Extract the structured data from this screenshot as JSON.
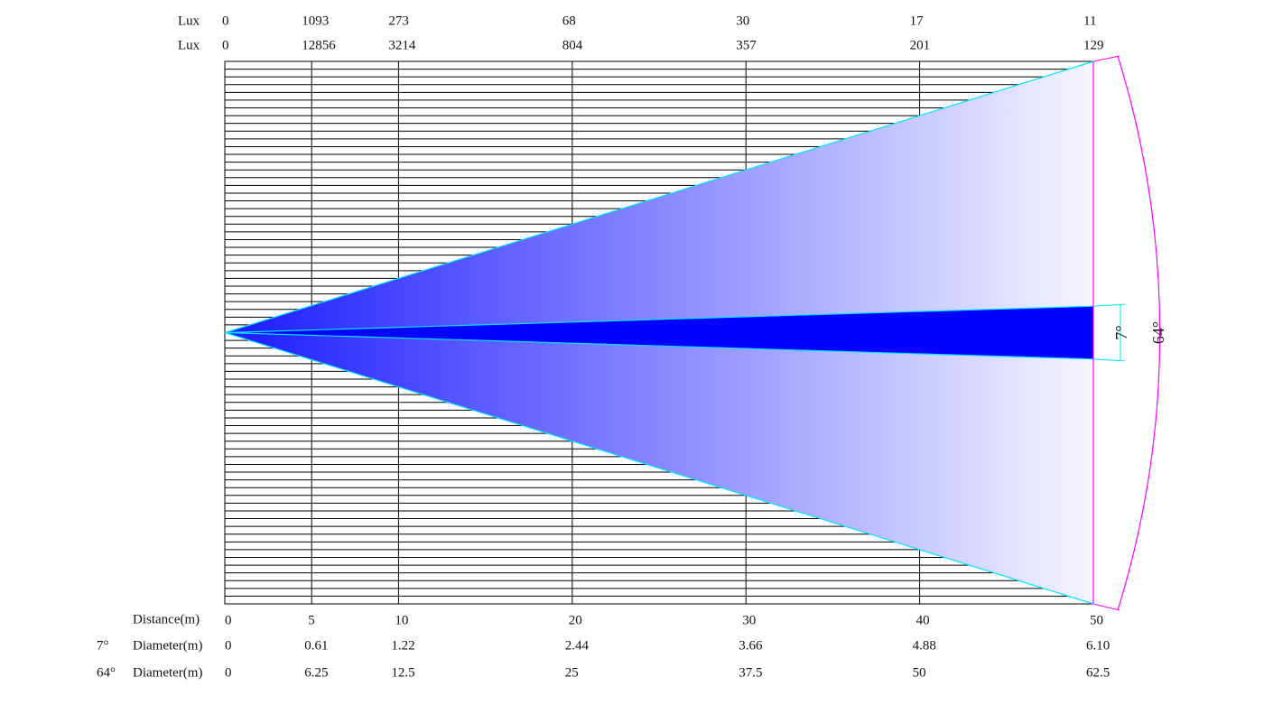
{
  "lux_rows": [
    {
      "label": "Lux",
      "values": [
        0,
        1093,
        273,
        68,
        30,
        17,
        11
      ]
    },
    {
      "label": "Lux",
      "values": [
        0,
        12856,
        3214,
        804,
        357,
        201,
        129
      ]
    }
  ],
  "distance": {
    "label": "Distance(m)",
    "values": [
      0,
      5,
      10,
      20,
      30,
      40,
      50
    ]
  },
  "beams": [
    {
      "angle": "7°",
      "label": "Diameter(m)",
      "values": [
        0,
        0.61,
        1.22,
        2.44,
        3.66,
        4.88,
        {
          "value": 6.1,
          "label": "6.10"
        }
      ]
    },
    {
      "angle": "64°",
      "label": "Diameter(m)",
      "values": [
        0,
        6.25,
        12.5,
        25,
        37.5,
        50,
        62.5
      ]
    }
  ]
}
